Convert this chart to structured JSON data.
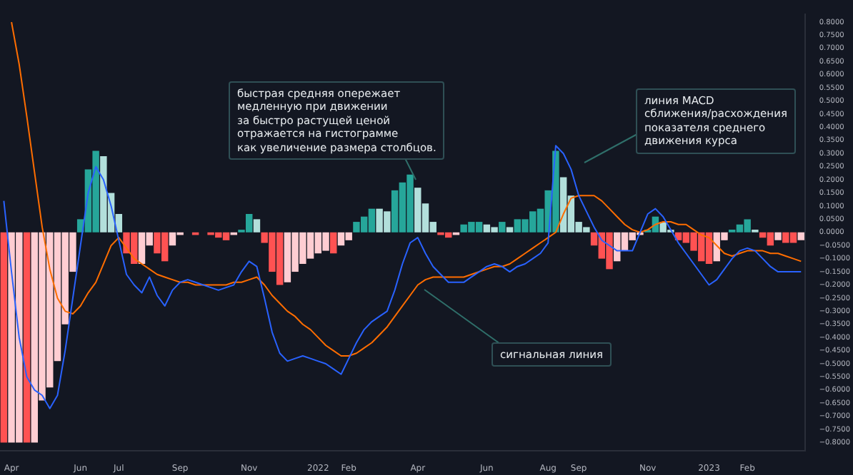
{
  "chart_data": {
    "type": "bar",
    "categories": [
      null,
      "Apr",
      null,
      null,
      null,
      null,
      null,
      null,
      null,
      null,
      "Jun",
      null,
      null,
      null,
      null,
      "Jul",
      null,
      null,
      null,
      null,
      null,
      null,
      null,
      "Sep",
      null,
      null,
      null,
      null,
      null,
      null,
      null,
      null,
      "Nov",
      null,
      null,
      null,
      null,
      null,
      null,
      null,
      null,
      "2022",
      null,
      null,
      null,
      "Feb",
      null,
      null,
      null,
      null,
      null,
      null,
      null,
      null,
      "Apr",
      null,
      null,
      null,
      null,
      null,
      null,
      null,
      null,
      "Jun",
      null,
      null,
      null,
      null,
      null,
      null,
      null,
      "Aug",
      null,
      null,
      null,
      "Sep",
      null,
      null,
      null,
      null,
      null,
      null,
      null,
      null,
      "Nov",
      null,
      null,
      null,
      null,
      null,
      null,
      null,
      "2023",
      null,
      null,
      null,
      null,
      "Feb",
      null,
      null,
      null,
      null,
      null,
      null,
      null
    ],
    "series": [
      {
        "type": "bar",
        "values": [
          -0.8,
          -0.8,
          -0.8,
          -0.8,
          -0.8,
          -0.64,
          -0.59,
          -0.49,
          -0.35,
          -0.15,
          0.05,
          0.24,
          0.31,
          0.29,
          0.15,
          0.07,
          -0.08,
          -0.12,
          -0.12,
          -0.05,
          -0.08,
          -0.11,
          -0.05,
          -0.01,
          0,
          -0.01,
          0,
          -0.01,
          -0.02,
          -0.03,
          -0.01,
          0.01,
          0.07,
          0.05,
          -0.04,
          -0.15,
          -0.2,
          -0.19,
          -0.15,
          -0.12,
          -0.1,
          -0.08,
          -0.07,
          -0.08,
          -0.05,
          -0.03,
          0.04,
          0.06,
          0.09,
          0.09,
          0.08,
          0.16,
          0.19,
          0.22,
          0.17,
          0.11,
          0.04,
          -0.01,
          -0.02,
          -0.01,
          0.03,
          0.04,
          0.04,
          0.03,
          0.02,
          0.04,
          0.02,
          0.05,
          0.05,
          0.08,
          0.09,
          0.16,
          0.31,
          0.21,
          0.14,
          0.04,
          0.02,
          -0.05,
          -0.1,
          -0.14,
          -0.11,
          -0.07,
          -0.03,
          -0.01,
          0.01,
          0.06,
          0.04,
          0.01,
          -0.03,
          -0.04,
          -0.07,
          -0.11,
          -0.12,
          -0.11,
          -0.03,
          0.01,
          0.03,
          0.05,
          0.01,
          -0.02,
          -0.05,
          -0.03,
          -0.04,
          -0.04,
          -0.03
        ],
        "colors": [
          "#ff5252",
          "#ffcdd2",
          "#ffcdd2",
          "#ff5252",
          "#ffcdd2",
          "#ffcdd2",
          "#ffcdd2",
          "#ffcdd2",
          "#ffcdd2",
          "#ffcdd2",
          "#26a69a",
          "#26a69a",
          "#26a69a",
          "#b2dfdb",
          "#b2dfdb",
          "#b2dfdb",
          "#ff5252",
          "#ff5252",
          "#ffcdd2",
          "#ffcdd2",
          "#ff5252",
          "#ff5252",
          "#ffcdd2",
          "#ffcdd2",
          "#ffcdd2",
          "#ff5252",
          "#ffcdd2",
          "#ff5252",
          "#ff5252",
          "#ff5252",
          "#ffcdd2",
          "#26a69a",
          "#26a69a",
          "#b2dfdb",
          "#ff5252",
          "#ff5252",
          "#ff5252",
          "#ffcdd2",
          "#ffcdd2",
          "#ffcdd2",
          "#ffcdd2",
          "#ffcdd2",
          "#ffcdd2",
          "#ff5252",
          "#ffcdd2",
          "#ffcdd2",
          "#26a69a",
          "#26a69a",
          "#26a69a",
          "#b2dfdb",
          "#b2dfdb",
          "#26a69a",
          "#26a69a",
          "#26a69a",
          "#b2dfdb",
          "#b2dfdb",
          "#b2dfdb",
          "#ff5252",
          "#ff5252",
          "#ffcdd2",
          "#26a69a",
          "#26a69a",
          "#26a69a",
          "#b2dfdb",
          "#b2dfdb",
          "#26a69a",
          "#b2dfdb",
          "#26a69a",
          "#26a69a",
          "#26a69a",
          "#26a69a",
          "#26a69a",
          "#26a69a",
          "#b2dfdb",
          "#b2dfdb",
          "#b2dfdb",
          "#b2dfdb",
          "#ff5252",
          "#ff5252",
          "#ff5252",
          "#ffcdd2",
          "#ffcdd2",
          "#ffcdd2",
          "#ffcdd2",
          "#26a69a",
          "#26a69a",
          "#b2dfdb",
          "#b2dfdb",
          "#ff5252",
          "#ff5252",
          "#ff5252",
          "#ff5252",
          "#ff5252",
          "#ffcdd2",
          "#ffcdd2",
          "#26a69a",
          "#26a69a",
          "#26a69a",
          "#b2dfdb",
          "#ff5252",
          "#ff5252",
          "#ffcdd2",
          "#ff5252",
          "#ff5252",
          "#ffcdd2"
        ]
      },
      {
        "type": "line",
        "color": "#2962ff",
        "values": [
          0.12,
          -0.15,
          -0.4,
          -0.55,
          -0.6,
          -0.62,
          -0.67,
          -0.62,
          -0.45,
          -0.25,
          -0.05,
          0.15,
          0.25,
          0.2,
          0.1,
          -0.03,
          -0.16,
          -0.2,
          -0.23,
          -0.17,
          -0.24,
          -0.28,
          -0.22,
          -0.19,
          -0.18,
          -0.19,
          -0.2,
          -0.21,
          -0.22,
          -0.21,
          -0.2,
          -0.15,
          -0.11,
          -0.13,
          -0.25,
          -0.38,
          -0.46,
          -0.49,
          -0.48,
          -0.47,
          -0.48,
          -0.49,
          -0.5,
          -0.52,
          -0.54,
          -0.48,
          -0.42,
          -0.37,
          -0.34,
          -0.32,
          -0.3,
          -0.22,
          -0.12,
          -0.04,
          -0.02,
          -0.08,
          -0.13,
          -0.16,
          -0.19,
          -0.19,
          -0.19,
          -0.17,
          -0.15,
          -0.13,
          -0.12,
          -0.13,
          -0.15,
          -0.13,
          -0.12,
          -0.1,
          -0.08,
          -0.04,
          0.33,
          0.3,
          0.24,
          0.14,
          0.08,
          0.02,
          -0.03,
          -0.05,
          -0.07,
          -0.07,
          -0.07,
          0,
          0.07,
          0.09,
          0.06,
          0.01,
          -0.04,
          -0.08,
          -0.12,
          -0.16,
          -0.2,
          -0.18,
          -0.14,
          -0.1,
          -0.07,
          -0.06,
          -0.07,
          -0.1,
          -0.13,
          -0.15,
          -0.15,
          -0.15,
          -0.15
        ]
      },
      {
        "type": "line",
        "color": "#ff6d00",
        "values": [
          null,
          0.8,
          0.64,
          0.44,
          0.23,
          0.02,
          -0.14,
          -0.25,
          -0.3,
          -0.31,
          -0.28,
          -0.23,
          -0.19,
          -0.12,
          -0.05,
          -0.02,
          -0.06,
          -0.1,
          -0.12,
          -0.14,
          -0.16,
          -0.17,
          -0.18,
          -0.19,
          -0.19,
          -0.2,
          -0.2,
          -0.2,
          -0.2,
          -0.2,
          -0.19,
          -0.19,
          -0.18,
          -0.17,
          -0.2,
          -0.24,
          -0.27,
          -0.3,
          -0.32,
          -0.35,
          -0.37,
          -0.4,
          -0.43,
          -0.45,
          -0.47,
          -0.47,
          -0.46,
          -0.44,
          -0.42,
          -0.39,
          -0.36,
          -0.32,
          -0.28,
          -0.24,
          -0.2,
          -0.18,
          -0.17,
          -0.17,
          -0.17,
          -0.17,
          -0.17,
          -0.16,
          -0.15,
          -0.14,
          -0.13,
          -0.13,
          -0.12,
          -0.1,
          -0.08,
          -0.06,
          -0.04,
          -0.02,
          0,
          0.07,
          0.13,
          0.14,
          0.14,
          0.14,
          0.12,
          0.09,
          0.06,
          0.03,
          0.01,
          0,
          0.01,
          0.03,
          0.04,
          0.04,
          0.03,
          0.03,
          0.01,
          -0.01,
          -0.02,
          -0.05,
          -0.08,
          -0.09,
          -0.08,
          -0.07,
          -0.07,
          -0.07,
          -0.08,
          -0.08,
          -0.09,
          -0.1,
          -0.11
        ]
      }
    ],
    "ylim": [
      -0.83,
      0.83
    ],
    "yticks": [
      {
        "value": 0.8,
        "label": "0.8000"
      },
      {
        "value": 0.75,
        "label": "0.7500"
      },
      {
        "value": 0.7,
        "label": "0.7000"
      },
      {
        "value": 0.65,
        "label": "0.6500"
      },
      {
        "value": 0.6,
        "label": "0.6000"
      },
      {
        "value": 0.55,
        "label": "0.5500"
      },
      {
        "value": 0.5,
        "label": "0.5000"
      },
      {
        "value": 0.45,
        "label": "0.4500"
      },
      {
        "value": 0.4,
        "label": "0.4000"
      },
      {
        "value": 0.35,
        "label": "0.3500"
      },
      {
        "value": 0.3,
        "label": "0.3000"
      },
      {
        "value": 0.25,
        "label": "0.2500"
      },
      {
        "value": 0.2,
        "label": "0.2000"
      },
      {
        "value": 0.15,
        "label": "0.1500"
      },
      {
        "value": 0.1,
        "label": "0.1000"
      },
      {
        "value": 0.05,
        "label": "0.0500"
      },
      {
        "value": 0,
        "label": "0.0000"
      },
      {
        "value": -0.05,
        "label": "−0.0500"
      },
      {
        "value": -0.1,
        "label": "−0.1000"
      },
      {
        "value": -0.15,
        "label": "−0.1500"
      },
      {
        "value": -0.2,
        "label": "−0.2000"
      },
      {
        "value": -0.25,
        "label": "−0.2500"
      },
      {
        "value": -0.3,
        "label": "−0.3000"
      },
      {
        "value": -0.35,
        "label": "−0.3500"
      },
      {
        "value": -0.4,
        "label": "−0.4000"
      },
      {
        "value": -0.45,
        "label": "−0.4500"
      },
      {
        "value": -0.5,
        "label": "−0.5000"
      },
      {
        "value": -0.55,
        "label": "−0.5500"
      },
      {
        "value": -0.6,
        "label": "−0.6000"
      },
      {
        "value": -0.65,
        "label": "−0.6500"
      },
      {
        "value": -0.7,
        "label": "−0.7000"
      },
      {
        "value": -0.75,
        "label": "−0.7500"
      },
      {
        "value": -0.8,
        "label": "−0.8000"
      }
    ],
    "annotations": [
      "быстрая средняя опережает\nмедленную при движении\nза быстро растущей ценой\nотражается на гистограмме\nкак увеличение размера столбцов.",
      "линия MACD\nсближения/расхождения\nпоказателя среднего\nдвижения курса",
      "сигнальная линия"
    ]
  }
}
